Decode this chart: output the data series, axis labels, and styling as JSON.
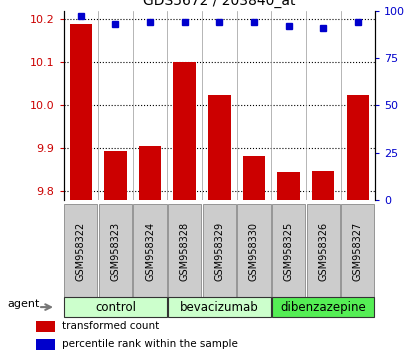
{
  "title": "GDS5672 / 203840_at",
  "samples": [
    "GSM958322",
    "GSM958323",
    "GSM958324",
    "GSM958328",
    "GSM958329",
    "GSM958330",
    "GSM958325",
    "GSM958326",
    "GSM958327"
  ],
  "bar_values": [
    10.19,
    9.895,
    9.905,
    10.1,
    10.025,
    9.882,
    9.845,
    9.848,
    10.025
  ],
  "percentile_values": [
    97,
    93,
    94,
    94,
    94,
    94,
    92,
    91,
    94
  ],
  "ylim_left": [
    9.78,
    10.22
  ],
  "ylim_right": [
    0,
    100
  ],
  "yticks_left": [
    9.8,
    9.9,
    10.0,
    10.1,
    10.2
  ],
  "yticks_right": [
    0,
    25,
    50,
    75,
    100
  ],
  "bar_color": "#cc0000",
  "dot_color": "#0000cc",
  "groups": [
    {
      "label": "control",
      "indices": [
        0,
        1,
        2
      ],
      "color": "#ccffcc"
    },
    {
      "label": "bevacizumab",
      "indices": [
        3,
        4,
        5
      ],
      "color": "#ccffcc"
    },
    {
      "label": "dibenzazepine",
      "indices": [
        6,
        7,
        8
      ],
      "color": "#55ee55"
    }
  ],
  "agent_label": "agent",
  "legend_items": [
    {
      "color": "#cc0000",
      "label": "transformed count"
    },
    {
      "color": "#0000cc",
      "label": "percentile rank within the sample"
    }
  ],
  "tick_color_left": "#cc0000",
  "tick_color_right": "#0000cc",
  "bar_bottom": 9.78,
  "gray_box_color": "#cccccc",
  "sample_fontsize": 7.0,
  "group_fontsize": 8.5
}
